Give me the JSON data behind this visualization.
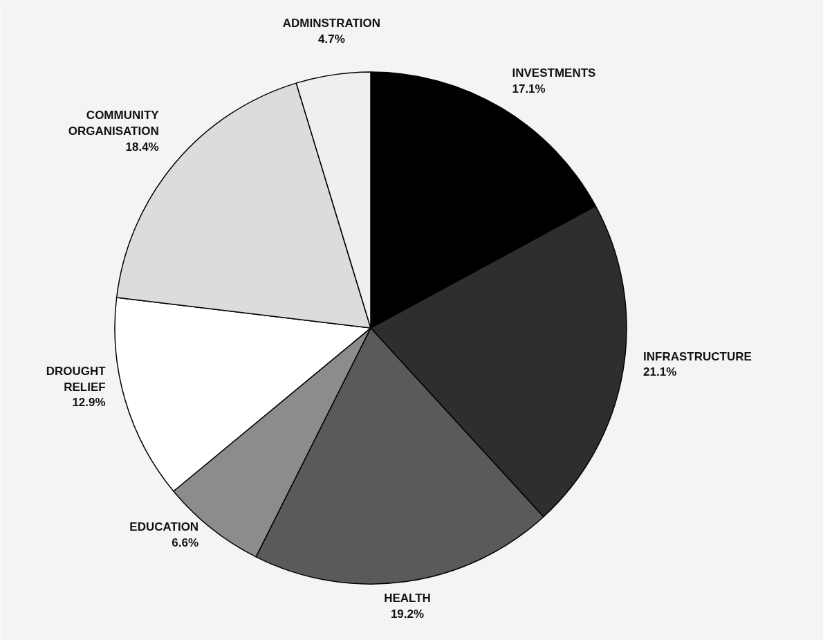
{
  "chart_data": {
    "type": "pie",
    "categories": [
      "INVESTMENTS",
      "INFRASTRUCTURE",
      "HEALTH",
      "EDUCATION",
      "DROUGHT RELIEF",
      "COMMUNITY ORGANISATION",
      "ADMINSTRATION"
    ],
    "values": [
      17.1,
      21.1,
      19.2,
      6.6,
      12.9,
      18.4,
      4.7
    ],
    "value_labels": [
      "17.1%",
      "21.1%",
      "19.2%",
      "6.6%",
      "12.9%",
      "18.4%",
      "4.7%"
    ],
    "colors": [
      "#000000",
      "#2e2e2e",
      "#5a5a5a",
      "#8c8c8c",
      "#ffffff",
      "#dcdcdc",
      "#efefef"
    ]
  }
}
